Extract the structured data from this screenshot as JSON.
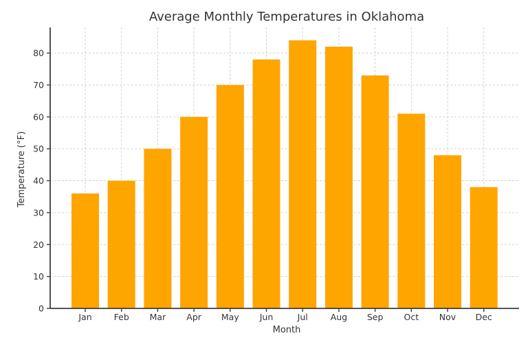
{
  "chart_data": {
    "type": "bar",
    "title": "Average Monthly Temperatures in Oklahoma",
    "xlabel": "Month",
    "ylabel": "Temperature (°F)",
    "categories": [
      "Jan",
      "Feb",
      "Mar",
      "Apr",
      "May",
      "Jun",
      "Jul",
      "Aug",
      "Sep",
      "Oct",
      "Nov",
      "Dec"
    ],
    "values": [
      36,
      40,
      50,
      60,
      70,
      78,
      84,
      82,
      73,
      61,
      48,
      38
    ],
    "ylim": [
      0,
      88
    ],
    "yticks": [
      0,
      10,
      20,
      30,
      40,
      50,
      60,
      70,
      80
    ],
    "legend": null,
    "grid": "both-dashed",
    "colors": {
      "bar": "#FFA500",
      "axis": "#3d3d3d",
      "grid": "#cfcfcf",
      "text": "#333333",
      "background": "#ffffff"
    }
  }
}
